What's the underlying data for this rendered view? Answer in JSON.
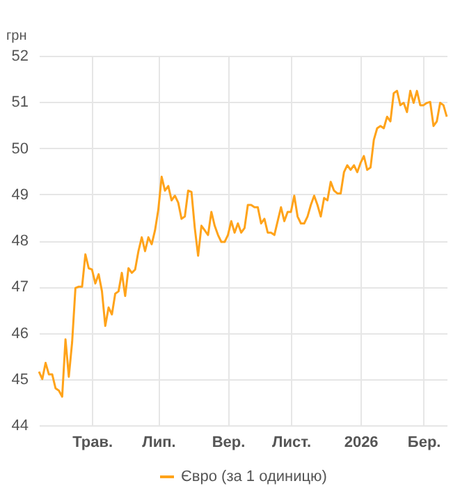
{
  "chart_data": {
    "type": "line",
    "ylabel": "грн",
    "ylim": [
      44,
      52
    ],
    "yticks": [
      44,
      45,
      46,
      47,
      48,
      49,
      50,
      51,
      52
    ],
    "grid": true,
    "legend": "bottom",
    "marker": "none",
    "categories": [
      null,
      null,
      null,
      null,
      null,
      null,
      null,
      null,
      null,
      null,
      null,
      null,
      null,
      null,
      null,
      null,
      "Трав.",
      null,
      null,
      null,
      null,
      null,
      null,
      null,
      null,
      null,
      null,
      null,
      null,
      null,
      null,
      null,
      null,
      null,
      null,
      null,
      "Лип.",
      null,
      null,
      null,
      null,
      null,
      null,
      null,
      null,
      null,
      null,
      null,
      null,
      null,
      null,
      null,
      null,
      null,
      null,
      null,
      null,
      "Вер.",
      null,
      null,
      null,
      null,
      null,
      null,
      null,
      null,
      null,
      null,
      null,
      null,
      null,
      null,
      null,
      null,
      null,
      null,
      "Лист.",
      null,
      null,
      null,
      null,
      null,
      null,
      null,
      null,
      null,
      null,
      null,
      null,
      null,
      null,
      null,
      null,
      null,
      null,
      null,
      null,
      "2026",
      null,
      null,
      null,
      null,
      null,
      null,
      null,
      null,
      null,
      null,
      null,
      null,
      null,
      null,
      null,
      null,
      null,
      null,
      "Бер.",
      null,
      null,
      null,
      null,
      null,
      null,
      null
    ],
    "series": [
      {
        "name": "Євро (за 1 одиницю)",
        "color": "#ffa31a",
        "values": [
          45.16,
          45.0,
          45.35,
          45.1,
          45.1,
          44.8,
          44.75,
          44.62,
          45.86,
          45.05,
          45.8,
          46.97,
          47.0,
          47.0,
          47.7,
          47.4,
          47.37,
          47.07,
          47.27,
          46.9,
          46.15,
          46.55,
          46.4,
          46.85,
          46.9,
          47.3,
          46.8,
          47.4,
          47.3,
          47.37,
          47.77,
          48.07,
          47.77,
          48.07,
          47.92,
          48.22,
          48.67,
          49.38,
          49.08,
          49.18,
          48.87,
          48.97,
          48.82,
          48.47,
          48.52,
          49.08,
          49.05,
          48.27,
          47.67,
          48.32,
          48.22,
          48.12,
          48.62,
          48.32,
          48.12,
          47.97,
          47.97,
          48.12,
          48.42,
          48.17,
          48.37,
          48.17,
          48.27,
          48.77,
          48.77,
          48.72,
          48.72,
          48.37,
          48.47,
          48.17,
          48.17,
          48.12,
          48.42,
          48.72,
          48.42,
          48.62,
          48.62,
          48.97,
          48.52,
          48.37,
          48.37,
          48.52,
          48.77,
          48.97,
          48.77,
          48.52,
          48.92,
          48.87,
          49.27,
          49.08,
          49.02,
          49.02,
          49.48,
          49.63,
          49.53,
          49.63,
          49.48,
          49.68,
          49.83,
          49.53,
          49.58,
          50.18,
          50.43,
          50.48,
          50.43,
          50.68,
          50.58,
          51.19,
          51.24,
          50.93,
          50.98,
          50.78,
          51.24,
          50.98,
          51.24,
          50.93,
          50.93,
          50.98,
          51.0,
          50.48,
          50.58,
          50.98,
          50.93,
          50.68
        ]
      }
    ]
  }
}
